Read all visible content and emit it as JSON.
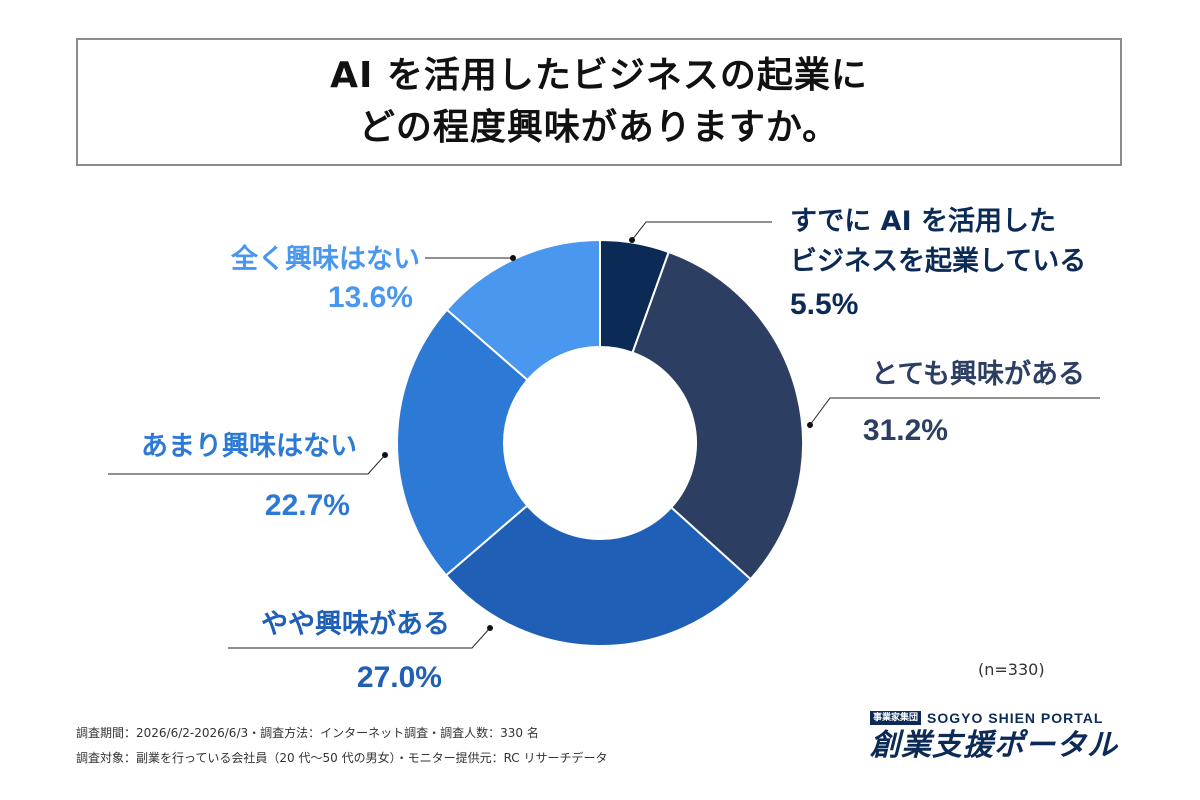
{
  "title": {
    "line1": "AI を活用したビジネスの起業に",
    "line2": "どの程度興味がありますか。"
  },
  "chart_data": {
    "type": "pie",
    "donut": true,
    "unit": "%",
    "slices": [
      {
        "label_lines": [
          "すでに AI を活用した",
          "ビジネスを起業している"
        ],
        "value": 5.5,
        "value_text": "5.5%",
        "color": "#0b2a55",
        "label_color": "#0b2a55"
      },
      {
        "label_lines": [
          "とても興味がある"
        ],
        "value": 31.2,
        "value_text": "31.2%",
        "color": "#2c3e62",
        "label_color": "#2c3e62"
      },
      {
        "label_lines": [
          "やや興味がある"
        ],
        "value": 27.0,
        "value_text": "27.0%",
        "color": "#1f5fb5",
        "label_color": "#1f5fb5"
      },
      {
        "label_lines": [
          "あまり興味はない"
        ],
        "value": 22.7,
        "value_text": "22.7%",
        "color": "#2d7ad6",
        "label_color": "#2d7ad6"
      },
      {
        "label_lines": [
          "全く興味はない"
        ],
        "value": 13.6,
        "value_text": "13.6%",
        "color": "#4a97f0",
        "label_color": "#4a97f0"
      }
    ]
  },
  "sample_size": "(n=330)",
  "footer": {
    "line1": "調査期間：2026/6/2-2026/6/3・調査方法：インターネット調査・調査人数：330 名",
    "line2": "調査対象：副業を行っている会社員（20 代〜50 代の男女）・モニター提供元：RC リサーチデータ"
  },
  "logo": {
    "badge": "事業家集団",
    "english": "SOGYO SHIEN PORTAL",
    "japanese": "創業支援ポータル",
    "color": "#0b2a55"
  }
}
